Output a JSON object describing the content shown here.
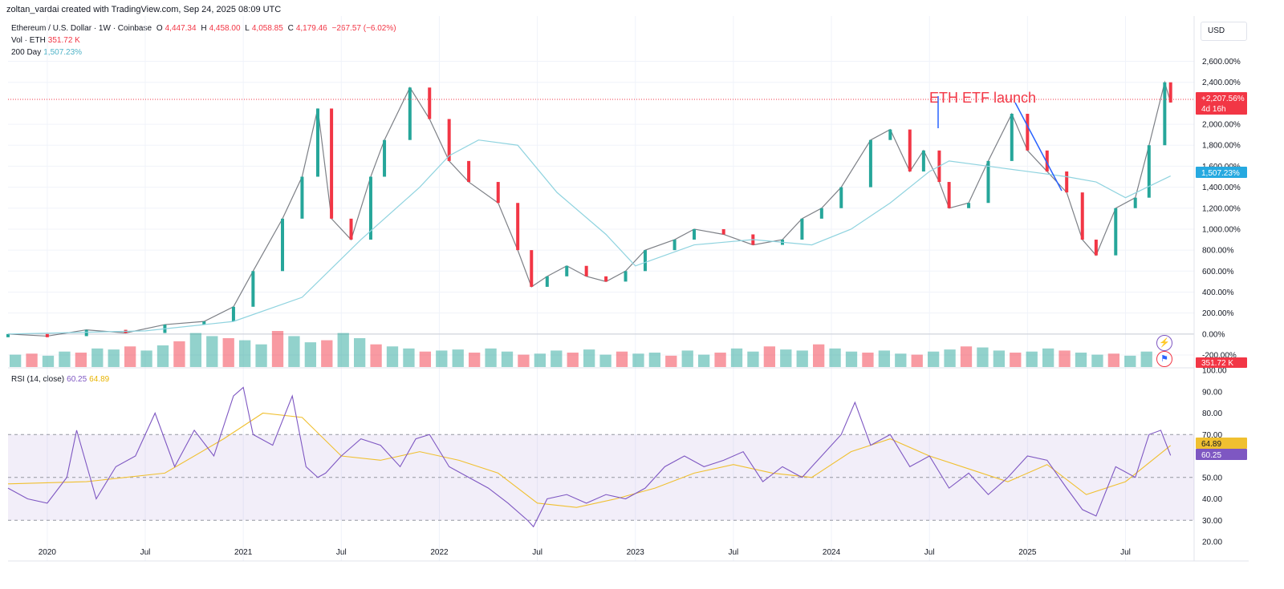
{
  "credit": "zoltan_vardai created with TradingView.com, Sep 24, 2025 08:09 UTC",
  "header": {
    "symbol": "Ethereum / U.S. Dollar · 1W · Coinbase",
    "o_label": "O",
    "o_val": "4,447.34",
    "h_label": "H",
    "h_val": "4,458.00",
    "l_label": "L",
    "l_val": "4,058.85",
    "c_label": "C",
    "c_val": "4,179.46",
    "change": "−267.57 (−6.02%)",
    "vol_label": "Vol · ETH",
    "vol_val": "351.72 K",
    "ma_label": "200 Day",
    "ma_val": "1,507.23%"
  },
  "rsi_header": {
    "label": "RSI (14, close)",
    "val": "60.25",
    "ma_val": "64.89"
  },
  "currency_button": "USD",
  "annotation": "ETH ETF launch",
  "tags": {
    "price": "+2,207.56%",
    "countdown": "4d 16h",
    "ma": "1,507.23%",
    "vol": "351.72 K",
    "rsi_ma": "64.89",
    "rsi": "60.25"
  },
  "colors": {
    "up": "#26a69a",
    "down": "#f23645",
    "ma": "#8fd3df",
    "rsi": "#7e57c2",
    "rsi_ma": "#f0c030",
    "annotation_text": "#f23645",
    "annotation_line": "#2962ff"
  },
  "chart_data": {
    "type": "line",
    "title": "Ethereum / U.S. Dollar · 1W · Coinbase",
    "x_ticks": [
      "2020",
      "Jul",
      "2021",
      "Jul",
      "2022",
      "Jul",
      "2023",
      "Jul",
      "2024",
      "Jul",
      "2025",
      "Jul"
    ],
    "x_tick_dates": [
      2020.0,
      2020.5,
      2021.0,
      2021.5,
      2022.0,
      2022.5,
      2023.0,
      2023.5,
      2024.0,
      2024.5,
      2025.0,
      2025.5
    ],
    "y_ticks": [
      "2,600.00%",
      "2,400.00%",
      "2,000.00%",
      "1,800.00%",
      "1,600.00%",
      "1,400.00%",
      "1,200.00%",
      "1,000.00%",
      "800.00%",
      "600.00%",
      "400.00%",
      "200.00%",
      "0.00%",
      "-200.00%"
    ],
    "y_tick_values": [
      2600,
      2400,
      2000,
      1800,
      1600,
      1400,
      1200,
      1000,
      800,
      600,
      400,
      200,
      0,
      -200
    ],
    "ylim": [
      -200,
      2650
    ],
    "price_series": {
      "name": "Ethereum / U.S. Dollar",
      "x": [
        2019.8,
        2020.0,
        2020.2,
        2020.4,
        2020.6,
        2020.8,
        2020.95,
        2021.05,
        2021.2,
        2021.3,
        2021.38,
        2021.45,
        2021.55,
        2021.65,
        2021.72,
        2021.85,
        2021.95,
        2022.05,
        2022.15,
        2022.3,
        2022.4,
        2022.47,
        2022.55,
        2022.65,
        2022.75,
        2022.85,
        2022.95,
        2023.05,
        2023.2,
        2023.3,
        2023.45,
        2023.6,
        2023.75,
        2023.85,
        2023.95,
        2024.05,
        2024.2,
        2024.3,
        2024.4,
        2024.47,
        2024.55,
        2024.6,
        2024.7,
        2024.8,
        2024.92,
        2025.0,
        2025.1,
        2025.2,
        2025.28,
        2025.35,
        2025.45,
        2025.55,
        2025.62,
        2025.7,
        2025.73
      ],
      "y": [
        0,
        -20,
        40,
        10,
        90,
        120,
        260,
        600,
        1100,
        1500,
        2150,
        1100,
        900,
        1500,
        1850,
        2350,
        2050,
        1650,
        1450,
        1250,
        800,
        450,
        550,
        650,
        550,
        500,
        600,
        800,
        900,
        1000,
        950,
        850,
        900,
        1100,
        1200,
        1400,
        1850,
        1950,
        1550,
        1750,
        1450,
        1200,
        1250,
        1650,
        2100,
        1750,
        1550,
        1350,
        900,
        750,
        1200,
        1300,
        1800,
        2400,
        2207.56
      ]
    },
    "ma_series": {
      "name": "200 Day",
      "x": [
        2019.8,
        2020.5,
        2020.95,
        2021.3,
        2021.6,
        2021.9,
        2022.05,
        2022.2,
        2022.4,
        2022.6,
        2022.85,
        2023.0,
        2023.3,
        2023.6,
        2023.9,
        2024.1,
        2024.3,
        2024.5,
        2024.6,
        2024.8,
        2025.0,
        2025.2,
        2025.35,
        2025.5,
        2025.73
      ],
      "y": [
        0,
        30,
        120,
        350,
        900,
        1400,
        1700,
        1850,
        1800,
        1350,
        950,
        650,
        850,
        900,
        850,
        1000,
        1250,
        1550,
        1650,
        1600,
        1550,
        1500,
        1450,
        1300,
        1507.23
      ]
    },
    "volume": [
      120,
      130,
      110,
      150,
      140,
      180,
      170,
      200,
      160,
      210,
      250,
      330,
      300,
      280,
      260,
      220,
      350,
      300,
      240,
      260,
      330,
      280,
      220,
      200,
      180,
      150,
      160,
      170,
      140,
      180,
      150,
      120,
      130,
      160,
      140,
      170,
      120,
      150,
      130,
      140,
      110,
      160,
      120,
      140,
      180,
      150,
      200,
      170,
      160,
      220,
      180,
      150,
      140,
      160,
      130,
      120,
      150,
      170,
      200,
      190,
      160,
      140,
      150,
      180,
      160,
      140,
      120,
      130,
      110,
      150
    ],
    "rsi": {
      "name": "RSI (14, close)",
      "ylim": [
        20,
        100
      ],
      "y_ticks": [
        "100.00",
        "90.00",
        "80.00",
        "70.00",
        "60.00",
        "50.00",
        "40.00",
        "30.00",
        "20.00"
      ],
      "y_tick_values": [
        100,
        90,
        80,
        70,
        60,
        50,
        40,
        30,
        20
      ],
      "bands": [
        70,
        50,
        30
      ],
      "x": [
        2019.8,
        2019.9,
        2020.0,
        2020.1,
        2020.15,
        2020.25,
        2020.35,
        2020.45,
        2020.55,
        2020.65,
        2020.75,
        2020.85,
        2020.95,
        2021.0,
        2021.05,
        2021.15,
        2021.25,
        2021.32,
        2021.38,
        2021.42,
        2021.5,
        2021.6,
        2021.7,
        2021.8,
        2021.88,
        2021.95,
        2022.05,
        2022.15,
        2022.25,
        2022.35,
        2022.45,
        2022.48,
        2022.55,
        2022.65,
        2022.75,
        2022.85,
        2022.95,
        2023.05,
        2023.15,
        2023.25,
        2023.35,
        2023.45,
        2023.55,
        2023.65,
        2023.75,
        2023.85,
        2023.95,
        2024.05,
        2024.12,
        2024.2,
        2024.3,
        2024.4,
        2024.5,
        2024.6,
        2024.7,
        2024.8,
        2024.9,
        2025.0,
        2025.1,
        2025.2,
        2025.28,
        2025.35,
        2025.45,
        2025.55,
        2025.62,
        2025.68,
        2025.73
      ],
      "y": [
        45,
        40,
        38,
        50,
        72,
        40,
        55,
        60,
        80,
        55,
        72,
        60,
        88,
        92,
        70,
        65,
        88,
        55,
        50,
        52,
        60,
        68,
        65,
        55,
        68,
        70,
        55,
        50,
        45,
        38,
        30,
        27,
        40,
        42,
        38,
        42,
        40,
        45,
        55,
        60,
        55,
        58,
        62,
        48,
        55,
        50,
        60,
        70,
        85,
        65,
        70,
        55,
        60,
        45,
        52,
        42,
        50,
        60,
        58,
        45,
        35,
        32,
        55,
        50,
        70,
        72,
        60.25
      ]
    },
    "rsi_ma": {
      "name": "RSI-based MA",
      "x": [
        2019.8,
        2020.2,
        2020.6,
        2020.9,
        2021.1,
        2021.3,
        2021.5,
        2021.7,
        2021.9,
        2022.1,
        2022.3,
        2022.5,
        2022.7,
        2022.9,
        2023.1,
        2023.3,
        2023.5,
        2023.7,
        2023.9,
        2024.1,
        2024.3,
        2024.5,
        2024.7,
        2024.9,
        2025.1,
        2025.3,
        2025.5,
        2025.73
      ],
      "y": [
        47,
        48,
        52,
        68,
        80,
        78,
        60,
        58,
        62,
        58,
        52,
        38,
        36,
        40,
        45,
        52,
        56,
        52,
        50,
        62,
        68,
        60,
        54,
        48,
        56,
        42,
        48,
        64.89
      ]
    }
  }
}
